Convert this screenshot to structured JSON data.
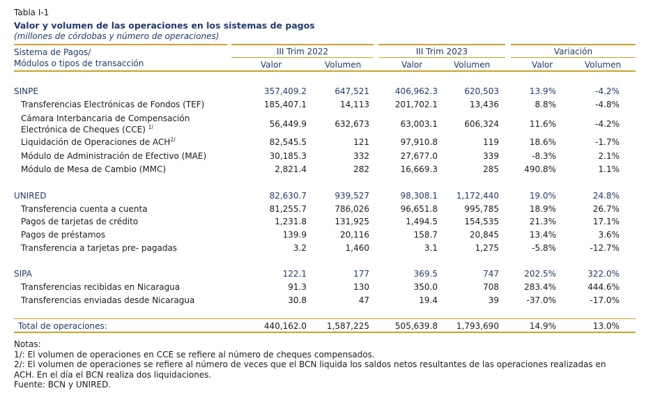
{
  "table_id": "Tabla I-1",
  "title": "Valor y volumen de las operaciones en los sistemas de pagos",
  "subtitle": "(millones de córdobas y número de operaciones)",
  "header": {
    "row_label_1": "Sistema de Pagos/",
    "row_label_2": "Módulos o tipos de transacción",
    "group_1": "III Trim 2022",
    "group_2": "III Trim 2023",
    "group_3": "Variación",
    "col_valor": "Valor",
    "col_volumen": "Volumen"
  },
  "rows": [
    {
      "label": "SINPE",
      "v22": "357,409.2",
      "q22": "647,521",
      "v23": "406,962.3",
      "q23": "620,503",
      "vv": "13.9%",
      "vq": "-4.2%"
    },
    {
      "label": "Transferencias Electrónicas de Fondos (TEF)",
      "v22": "185,407.1",
      "q22": "14,113",
      "v23": "201,702.1",
      "q23": "13,436",
      "vv": "8.8%",
      "vq": "-4.8%"
    },
    {
      "label": "Cámara Interbancaria de Compensación",
      "label2": "Electrónica de Cheques (CCE)",
      "sup": "1/",
      "v22": "56,449.9",
      "q22": "632,673",
      "v23": "63,003.1",
      "q23": "606,324",
      "vv": "11.6%",
      "vq": "-4.2%"
    },
    {
      "label": "Liquidación de Operaciones de ACH",
      "sup": "2/",
      "v22": "82,545.5",
      "q22": "121",
      "v23": "97,910.8",
      "q23": "119",
      "vv": "18.6%",
      "vq": "-1.7%"
    },
    {
      "label": "Módulo de Administración de Efectivo (MAE)",
      "v22": "30,185.3",
      "q22": "332",
      "v23": "27,677.0",
      "q23": "339",
      "vv": "-8.3%",
      "vq": "2.1%"
    },
    {
      "label": "Módulo de Mesa de Cambio (MMC)",
      "v22": "2,821.4",
      "q22": "282",
      "v23": "16,669.3",
      "q23": "285",
      "vv": "490.8%",
      "vq": "1.1%"
    },
    {
      "label": "UNIRED",
      "v22": "82,630.7",
      "q22": "939,527",
      "v23": "98,308.1",
      "q23": "1,172,440",
      "vv": "19.0%",
      "vq": "24.8%"
    },
    {
      "label": "Transferencia cuenta a cuenta",
      "v22": "81,255.7",
      "q22": "786,026",
      "v23": "96,651.8",
      "q23": "995,785",
      "vv": "18.9%",
      "vq": "26.7%"
    },
    {
      "label": "Pagos de tarjetas de crédito",
      "v22": "1,231.8",
      "q22": "131,925",
      "v23": "1,494.5",
      "q23": "154,535",
      "vv": "21.3%",
      "vq": "17.1%"
    },
    {
      "label": "Pagos de préstamos",
      "v22": "139.9",
      "q22": "20,116",
      "v23": "158.7",
      "q23": "20,845",
      "vv": "13.4%",
      "vq": "3.6%"
    },
    {
      "label": "Transferencia a tarjetas pre- pagadas",
      "v22": "3.2",
      "q22": "1,460",
      "v23": "3.1",
      "q23": "1,275",
      "vv": "-5.8%",
      "vq": "-12.7%"
    },
    {
      "label": "SIPA",
      "v22": "122.1",
      "q22": "177",
      "v23": "369.5",
      "q23": "747",
      "vv": "202.5%",
      "vq": "322.0%"
    },
    {
      "label": "Transferencias recibidas en Nicaragua",
      "v22": "91.3",
      "q22": "130",
      "v23": "350.0",
      "q23": "708",
      "vv": "283.4%",
      "vq": "444.6%"
    },
    {
      "label": "Transferencias enviadas desde Nicaragua",
      "v22": "30.8",
      "q22": "47",
      "v23": "19.4",
      "q23": "39",
      "vv": "-37.0%",
      "vq": "-17.0%"
    }
  ],
  "total": {
    "label": "Total de operaciones:",
    "v22": "440,162.0",
    "q22": "1,587,225",
    "v23": "505,639.8",
    "q23": "1,793,690",
    "vv": "14.9%",
    "vq": "13.0%"
  },
  "notes": [
    "Notas:",
    "1/: El volumen de operaciones en CCE se refiere al número de cheques compensados.",
    "2/: El volumen de operaciones se refiere al número de veces que el BCN liquida los saldos netos resultantes de las operaciones realizadas en",
    "ACH. En el día el BCN realiza dos liquidaciones.",
    "Fuente: BCN y UNIRED."
  ]
}
